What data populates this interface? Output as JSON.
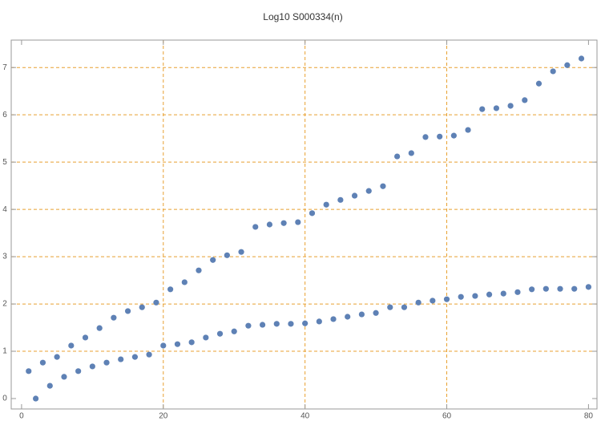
{
  "chart_data": {
    "type": "scatter",
    "title": "Log10 S000334(n)",
    "x": [
      1,
      2,
      3,
      4,
      5,
      6,
      7,
      8,
      9,
      10,
      11,
      12,
      13,
      14,
      15,
      16,
      17,
      18,
      19,
      20,
      21,
      22,
      23,
      24,
      25,
      26,
      27,
      28,
      29,
      30,
      31,
      32,
      33,
      34,
      35,
      36,
      37,
      38,
      39,
      40,
      41,
      42,
      43,
      44,
      45,
      46,
      47,
      48,
      49,
      50,
      51,
      52,
      53,
      54,
      55,
      56,
      57,
      58,
      59,
      60,
      61,
      62,
      63,
      64,
      65,
      66,
      67,
      68,
      69,
      70,
      71,
      72,
      73,
      74,
      75,
      76,
      77,
      78,
      79,
      80
    ],
    "values": [
      0.58,
      0.0,
      0.76,
      0.27,
      0.88,
      0.46,
      1.12,
      0.58,
      1.29,
      0.68,
      1.49,
      0.76,
      1.71,
      0.83,
      1.85,
      0.88,
      1.93,
      0.93,
      2.03,
      1.12,
      2.31,
      1.15,
      2.46,
      1.19,
      2.71,
      1.29,
      2.93,
      1.37,
      3.03,
      1.42,
      3.1,
      1.54,
      3.63,
      1.56,
      3.68,
      1.58,
      3.71,
      1.58,
      3.73,
      1.59,
      3.92,
      1.63,
      4.1,
      1.68,
      4.2,
      1.73,
      4.29,
      1.78,
      4.39,
      1.81,
      4.49,
      1.93,
      5.12,
      1.93,
      5.19,
      2.03,
      5.53,
      2.07,
      5.54,
      2.1,
      5.56,
      2.15,
      5.68,
      2.17,
      6.12,
      2.2,
      6.14,
      2.22,
      6.19,
      2.25,
      6.31,
      2.31,
      6.66,
      2.32,
      6.92,
      2.32,
      7.05,
      2.32,
      7.19,
      2.36
    ],
    "color": "#5e81b5",
    "xlim": [
      -1.46,
      81.2
    ],
    "ylim": [
      -0.22,
      7.58
    ],
    "xticks": [
      0,
      20,
      40,
      60,
      80
    ],
    "yticks": [
      0,
      1,
      2,
      3,
      4,
      5,
      6,
      7
    ],
    "grid_x": [
      20,
      40,
      60
    ],
    "grid_y": [
      1,
      2,
      3,
      4,
      5,
      6,
      7
    ],
    "grid_color": "#e8a030"
  }
}
